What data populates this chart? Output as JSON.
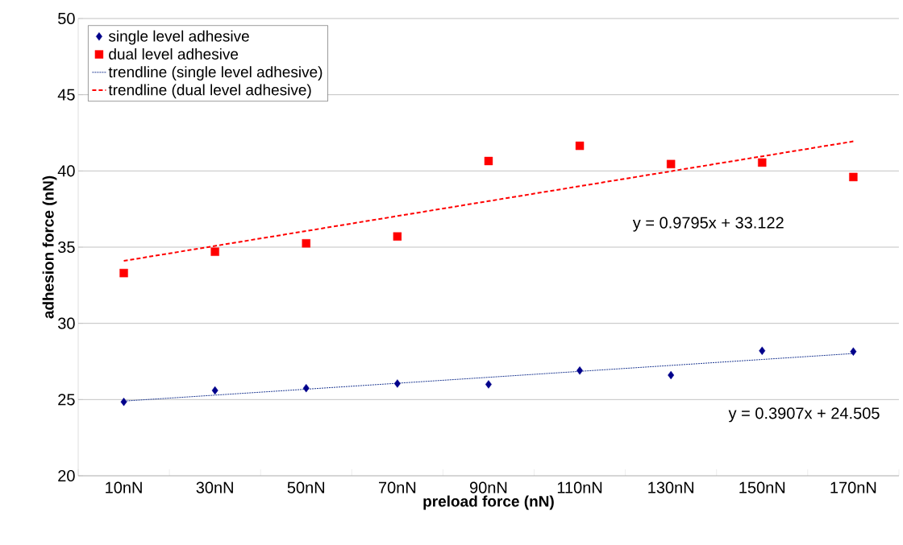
{
  "chart_data": {
    "type": "scatter",
    "xlabel": "preload force (nN)",
    "ylabel": "adhesion force  (nN)",
    "categories": [
      "10nN",
      "30nN",
      "50nN",
      "70nN",
      "90nN",
      "110nN",
      "130nN",
      "150nN",
      "170nN"
    ],
    "series": [
      {
        "name": "single level adhesive",
        "color": "#00008b",
        "marker": "diamond",
        "values": [
          24.85,
          25.6,
          25.75,
          26.05,
          26.0,
          26.9,
          26.6,
          28.2,
          28.15
        ]
      },
      {
        "name": "dual level adhesive",
        "color": "#ff0000",
        "marker": "square",
        "values": [
          33.3,
          34.7,
          35.25,
          35.7,
          40.65,
          41.65,
          40.45,
          40.55,
          39.6
        ]
      },
      {
        "name": "trendline (single level adhesive)",
        "type": "line",
        "color": "#1f3a93",
        "line_style": "dotted",
        "values": [
          24.9,
          25.29,
          25.68,
          26.07,
          26.46,
          26.85,
          27.24,
          27.63,
          28.02
        ]
      },
      {
        "name": "trendline (dual level adhesive)",
        "type": "line",
        "color": "#ff0000",
        "line_style": "dashed",
        "values": [
          34.1,
          35.08,
          36.06,
          37.04,
          38.02,
          39.0,
          39.98,
          40.96,
          41.94
        ]
      }
    ],
    "ylim": [
      20,
      50
    ],
    "yticks": [
      20,
      25,
      30,
      35,
      40,
      45,
      50
    ],
    "annotations": [
      "y = 0.9795x + 33.122",
      "y = 0.3907x + 24.505"
    ],
    "grid": "y",
    "legend": "top left"
  }
}
